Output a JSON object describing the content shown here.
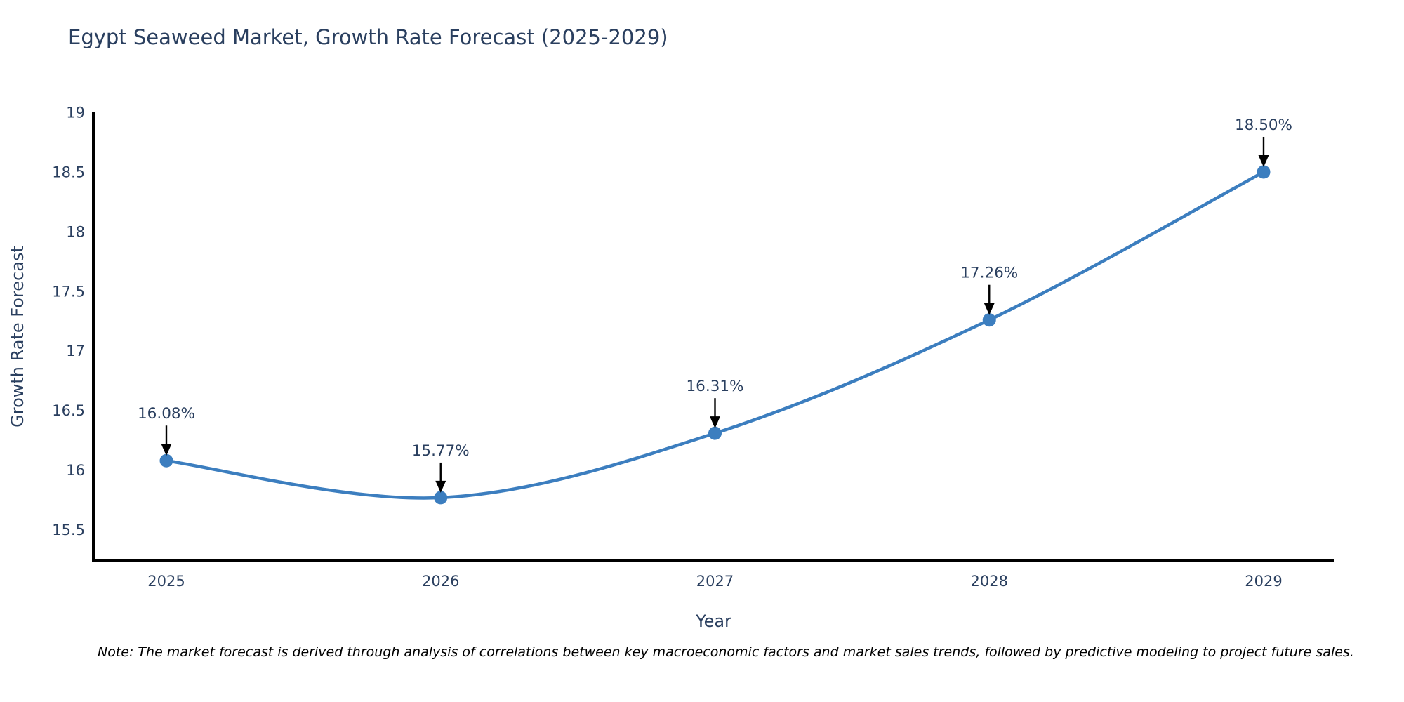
{
  "chart_data": {
    "type": "line",
    "title": "Egypt Seaweed Market, Growth Rate Forecast (2025-2029)",
    "x": [
      2025,
      2026,
      2027,
      2028,
      2029
    ],
    "categories": [
      "2025",
      "2026",
      "2027",
      "2028",
      "2029"
    ],
    "series": [
      {
        "name": "Growth Rate Forecast",
        "values": [
          16.08,
          15.77,
          16.31,
          17.26,
          18.5
        ]
      }
    ],
    "point_labels": [
      "16.08%",
      "15.77%",
      "16.31%",
      "17.26%",
      "18.50%"
    ],
    "xlabel": "Year",
    "ylabel": "Growth Rate Forecast",
    "ylim": [
      15.24,
      19
    ],
    "yticks": [
      15.5,
      16,
      16.5,
      17,
      17.5,
      18,
      18.5,
      19
    ],
    "grid": false,
    "legend": "none",
    "line_shape": "spline",
    "colors": {
      "line": "#3c7ebf",
      "marker": "#3c7ebf",
      "axis": "#000000",
      "annotation_arrow": "#000000",
      "text": "#2a3f5f"
    }
  },
  "note": {
    "text": "Note: The market forecast is derived through analysis of correlations between key macroeconomic factors and market sales trends, followed by predictive modeling to project future sales."
  }
}
